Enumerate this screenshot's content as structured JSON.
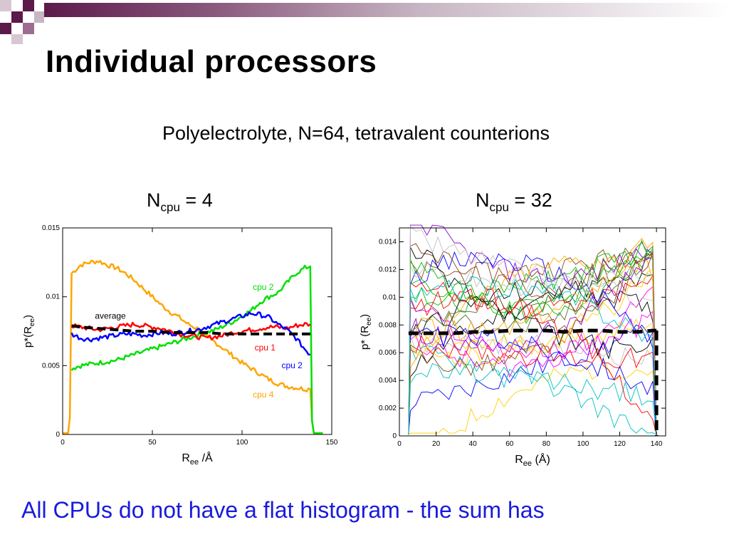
{
  "slide": {
    "title": "Individual processors",
    "subtitle": "Polyelectrolyte, N=64, tetravalent counterions",
    "bottom_text": "All CPUs do not have a flat histogram - the sum has"
  },
  "colors": {
    "header_bar": "#5c1a4a",
    "cpu1": "#ff0000",
    "cpu2_green": "#00e000",
    "cpu2_blue": "#0000ff",
    "cpu4": "#ffa500",
    "average": "#000000",
    "bottom_text": "#1a1adc"
  },
  "chart_data": [
    {
      "type": "line",
      "title_main": "N",
      "title_sub": "cpu",
      "title_rest": " = 4",
      "xlabel_main": "R",
      "xlabel_sub": "ee",
      "xlabel_rest": " /Å",
      "ylabel_main": "p*(R",
      "ylabel_sub": "ee",
      "ylabel_rest": ")",
      "xlim": [
        0,
        150
      ],
      "ylim": [
        0,
        0.015
      ],
      "xticks": [
        0,
        50,
        100,
        150
      ],
      "xtick_labels": [
        "0",
        "50",
        "100",
        "150"
      ],
      "yticks": [
        0,
        0.005,
        0.01,
        0.015
      ],
      "ytick_labels": [
        "0",
        "0.005",
        "0.01",
        "0.015"
      ],
      "grid": false,
      "series": [
        {
          "name": "cpu 4",
          "color": "#ffa500",
          "dash": false,
          "x": [
            0,
            3,
            4,
            5,
            10,
            15,
            20,
            25,
            30,
            35,
            40,
            45,
            50,
            55,
            60,
            65,
            70,
            75,
            80,
            85,
            90,
            95,
            100,
            105,
            110,
            115,
            120,
            125,
            130,
            135,
            138,
            139,
            140,
            145
          ],
          "y": [
            0.0001,
            0.0001,
            0.0012,
            0.0117,
            0.0123,
            0.0125,
            0.0126,
            0.0123,
            0.0121,
            0.0117,
            0.0112,
            0.0106,
            0.01,
            0.0094,
            0.0089,
            0.0085,
            0.008,
            0.0077,
            0.0071,
            0.0067,
            0.0062,
            0.0057,
            0.0052,
            0.0048,
            0.0044,
            0.004,
            0.0037,
            0.0035,
            0.0034,
            0.0033,
            0.0033,
            0.001,
            0.0001,
            0.0001
          ]
        },
        {
          "name": "cpu 2",
          "color": "#00e000",
          "dash": false,
          "x": [
            5,
            10,
            15,
            20,
            25,
            30,
            35,
            40,
            45,
            50,
            55,
            60,
            65,
            70,
            75,
            80,
            85,
            90,
            95,
            100,
            105,
            110,
            115,
            120,
            125,
            130,
            135,
            138,
            139,
            140,
            145
          ],
          "y": [
            0.0048,
            0.005,
            0.0051,
            0.0052,
            0.0053,
            0.0054,
            0.0056,
            0.0058,
            0.006,
            0.0062,
            0.0064,
            0.0066,
            0.0068,
            0.007,
            0.0072,
            0.0074,
            0.0076,
            0.0079,
            0.0082,
            0.0086,
            0.009,
            0.0096,
            0.01,
            0.0103,
            0.011,
            0.0117,
            0.0121,
            0.0122,
            0.001,
            0.0001,
            0.0001
          ]
        },
        {
          "name": "cpu 1",
          "color": "#ff0000",
          "dash": false,
          "x": [
            5,
            10,
            15,
            20,
            25,
            30,
            35,
            40,
            45,
            50,
            55,
            60,
            65,
            70,
            75,
            80,
            85,
            90,
            95,
            100,
            105,
            110,
            115,
            120,
            125,
            130,
            135,
            138
          ],
          "y": [
            0.0079,
            0.0078,
            0.0077,
            0.0076,
            0.0077,
            0.0078,
            0.0079,
            0.008,
            0.0079,
            0.0078,
            0.0077,
            0.0075,
            0.0073,
            0.0072,
            0.0071,
            0.007,
            0.0071,
            0.0072,
            0.0074,
            0.0075,
            0.0076,
            0.0077,
            0.0078,
            0.0078,
            0.0077,
            0.0079,
            0.008,
            0.008
          ]
        },
        {
          "name": "cpu 2",
          "color": "#0000ff",
          "dash": false,
          "x": [
            5,
            10,
            15,
            20,
            25,
            30,
            35,
            40,
            45,
            50,
            55,
            60,
            65,
            70,
            75,
            80,
            85,
            90,
            95,
            100,
            105,
            110,
            115,
            120,
            125,
            130,
            135,
            138
          ],
          "y": [
            0.0073,
            0.007,
            0.0069,
            0.007,
            0.0071,
            0.0072,
            0.0073,
            0.0073,
            0.0072,
            0.0073,
            0.0074,
            0.0073,
            0.0074,
            0.0075,
            0.0076,
            0.0078,
            0.008,
            0.0082,
            0.0084,
            0.0086,
            0.0088,
            0.0087,
            0.0085,
            0.008,
            0.0076,
            0.007,
            0.0062,
            0.0058
          ]
        },
        {
          "name": "average",
          "color": "#000000",
          "dash": true,
          "x": [
            5,
            10,
            20,
            30,
            40,
            50,
            60,
            70,
            80,
            90,
            100,
            110,
            120,
            130,
            138
          ],
          "y": [
            0.0079,
            0.0078,
            0.0077,
            0.0076,
            0.0075,
            0.0075,
            0.0074,
            0.0074,
            0.0074,
            0.0073,
            0.0073,
            0.0073,
            0.0073,
            0.0073,
            0.0073
          ]
        }
      ],
      "annotations": [
        {
          "text": "cpu 2",
          "x": 106,
          "y": 0.0105,
          "color": "#00e000"
        },
        {
          "text": "average",
          "x": 18,
          "y": 0.0084,
          "color": "#000000"
        },
        {
          "text": "cpu 1",
          "x": 107,
          "y": 0.0061,
          "color": "#ff0000"
        },
        {
          "text": "cpu 2",
          "x": 122,
          "y": 0.0048,
          "color": "#0000ff"
        },
        {
          "text": "cpu 4",
          "x": 106,
          "y": 0.0027,
          "color": "#ffa500"
        }
      ]
    },
    {
      "type": "line",
      "title_main": "N",
      "title_sub": "cpu",
      "title_rest": " = 32",
      "xlabel_main": "R",
      "xlabel_sub": "ee",
      "xlabel_rest": " (Å)",
      "ylabel_main": "p* (R",
      "ylabel_sub": "ee",
      "ylabel_rest": ")",
      "xlim": [
        0,
        145
      ],
      "ylim": [
        0,
        0.015
      ],
      "xticks": [
        0,
        20,
        40,
        60,
        80,
        100,
        120,
        140
      ],
      "xtick_labels": [
        "0",
        "20",
        "40",
        "60",
        "80",
        "100",
        "120",
        "140"
      ],
      "yticks": [
        0,
        0.002,
        0.004,
        0.006,
        0.008,
        0.01,
        0.012,
        0.014
      ],
      "ytick_labels": [
        "0",
        "0.002",
        "0.004",
        "0.006",
        "0.008",
        "0.01",
        "0.012",
        "0.014"
      ],
      "grid": false,
      "many_series_count": 32,
      "many_series_colors": [
        "#000000",
        "#ff0000",
        "#00c000",
        "#0000ff",
        "#ffd000",
        "#8b4513",
        "#c0c0c0",
        "#00c0c0",
        "#9400d3",
        "#ff00ff",
        "#ffa500",
        "#556b2f"
      ],
      "average": {
        "name": "average",
        "color": "#000000",
        "dash": true,
        "x": [
          5,
          10,
          20,
          30,
          40,
          50,
          60,
          70,
          80,
          90,
          100,
          110,
          120,
          130,
          138,
          140
        ],
        "y": [
          0.0074,
          0.0074,
          0.0074,
          0.0074,
          0.0075,
          0.0075,
          0.0076,
          0.0076,
          0.0076,
          0.0075,
          0.0076,
          0.0076,
          0.0075,
          0.0075,
          0.0076,
          0.0076
        ]
      }
    }
  ]
}
